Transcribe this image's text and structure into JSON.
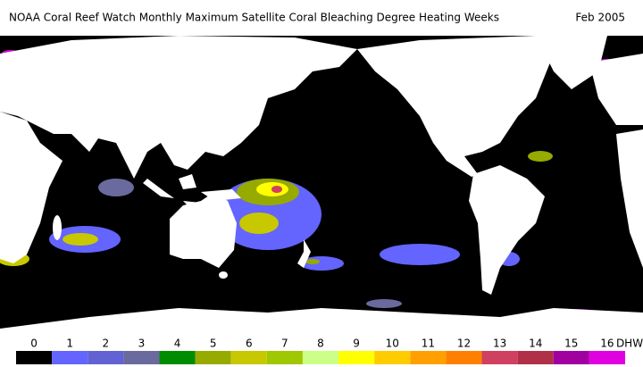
{
  "title": "NOAA Coral Reef Watch Monthly Maximum Satellite Coral Bleaching Degree Heating Weeks",
  "date": "Feb 2005",
  "legend": {
    "unit": "DHW",
    "items": [
      {
        "label": 0,
        "color": "#000000"
      },
      {
        "label": 1,
        "color": "#6464ff"
      },
      {
        "label": 2,
        "color": "#6262d4"
      },
      {
        "label": 3,
        "color": "#6a6a9e"
      },
      {
        "label": 4,
        "color": "#008c00"
      },
      {
        "label": 5,
        "color": "#96aa00"
      },
      {
        "label": 6,
        "color": "#c8c800"
      },
      {
        "label": 7,
        "color": "#a0c800"
      },
      {
        "label": 8,
        "color": "#ccff88"
      },
      {
        "label": 9,
        "color": "#ffff00"
      },
      {
        "label": 10,
        "color": "#ffcc00"
      },
      {
        "label": 11,
        "color": "#ffa000"
      },
      {
        "label": 12,
        "color": "#ff8000"
      },
      {
        "label": 13,
        "color": "#d04060"
      },
      {
        "label": 14,
        "color": "#b03048"
      },
      {
        "label": 15,
        "color": "#a000a0"
      },
      {
        "label": 16,
        "color": "#e000e0"
      }
    ]
  }
}
